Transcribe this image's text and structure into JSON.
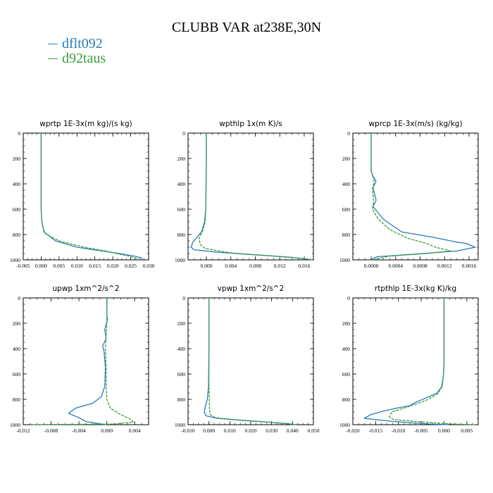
{
  "title": "CLUBB VAR at238E,30N",
  "legend": [
    {
      "name": "dflt092",
      "color": "#2a7ab9"
    },
    {
      "name": "d92taus",
      "color": "#3a9e3a"
    }
  ],
  "chart_data": [
    {
      "type": "line",
      "title": "wprtp  1E-3x(m kg)/(s kg)",
      "xlim": [
        -0.005,
        0.03
      ],
      "ylim": [
        1000,
        0
      ],
      "xticks": [
        -0.005,
        0.0,
        0.005,
        0.01,
        0.015,
        0.02,
        0.025,
        0.03
      ],
      "xtick_labels": [
        "-0.005",
        "0.000",
        "0.005",
        "0.010",
        "0.015",
        "0.020",
        "0.025",
        "0.030"
      ],
      "yticks": [
        0,
        200,
        400,
        600,
        800,
        1000
      ],
      "ytick_labels": [
        "0",
        "200",
        "400",
        "600",
        "800",
        "1000"
      ],
      "series": [
        {
          "name": "dflt092",
          "color": "#2a7ab9",
          "dash": false,
          "x": [
            0,
            0,
            0,
            0.0002,
            0.0008,
            0.004,
            0.01,
            0.017,
            0.022,
            0.026,
            0.028,
            0.0282
          ],
          "y": [
            0,
            200,
            600,
            700,
            780,
            850,
            900,
            930,
            950,
            970,
            985,
            1000
          ]
        },
        {
          "name": "d92taus",
          "color": "#3a9e3a",
          "dash": true,
          "x": [
            0,
            0,
            0,
            0.0002,
            0.001,
            0.005,
            0.012,
            0.018,
            0.021,
            0.0245,
            0.0262,
            0.0275
          ],
          "y": [
            0,
            200,
            600,
            700,
            790,
            850,
            900,
            930,
            950,
            970,
            985,
            1000
          ]
        }
      ]
    },
    {
      "type": "line",
      "title": "wpthlp  1x(m K)/s",
      "xlim": [
        -0.003,
        0.0175
      ],
      "ylim": [
        1000,
        0
      ],
      "xticks": [
        0.0,
        0.004,
        0.008,
        0.012,
        0.016
      ],
      "xtick_labels": [
        "0.000",
        "0.004",
        "0.008",
        "0.012",
        "0.016"
      ],
      "yticks": [
        0,
        200,
        400,
        600,
        800,
        1000
      ],
      "ytick_labels": [
        "0",
        "200",
        "400",
        "600",
        "800",
        "1000"
      ],
      "series": [
        {
          "name": "dflt092",
          "color": "#2a7ab9",
          "dash": false,
          "x": [
            0,
            0,
            -0.0001,
            -0.0003,
            -0.0008,
            -0.0015,
            -0.0022,
            -0.0025,
            -0.002,
            0.002,
            0.008,
            0.014,
            0.0165
          ],
          "y": [
            0,
            200,
            600,
            700,
            780,
            820,
            860,
            900,
            920,
            940,
            960,
            980,
            995
          ]
        },
        {
          "name": "d92taus",
          "color": "#3a9e3a",
          "dash": true,
          "x": [
            0,
            0,
            -0.0001,
            -0.0002,
            -0.0006,
            -0.0012,
            -0.001,
            -0.0002,
            0.004,
            0.011,
            0.016,
            0.0172
          ],
          "y": [
            0,
            200,
            600,
            700,
            770,
            830,
            880,
            910,
            945,
            970,
            990,
            1000
          ]
        }
      ]
    },
    {
      "type": "line",
      "title": "wprcp  1E-3x(m/s) (kg/kg)",
      "xlim": [
        -0.0003,
        0.00175
      ],
      "ylim": [
        1000,
        0
      ],
      "xticks": [
        0.0,
        0.0004,
        0.0008,
        0.0012,
        0.0016
      ],
      "xtick_labels": [
        "0.0000",
        "0.0004",
        "0.0008",
        "0.0012",
        "0.0016"
      ],
      "yticks": [
        0,
        200,
        400,
        600,
        800,
        1000
      ],
      "ytick_labels": [
        "0",
        "200",
        "400",
        "600",
        "800",
        "1000"
      ],
      "series": [
        {
          "name": "dflt092",
          "color": "#2a7ab9",
          "dash": false,
          "x": [
            0,
            0,
            2e-05,
            8e-05,
            3e-05,
            8e-05,
            3e-05,
            0.0002,
            0.0005,
            0.001,
            0.0014,
            0.00155,
            0.0017,
            0.0014,
            0.0007,
            0.0001,
            -2e-05
          ],
          "y": [
            0,
            300,
            330,
            380,
            430,
            530,
            580,
            680,
            780,
            820,
            860,
            870,
            900,
            930,
            955,
            975,
            1000
          ]
        },
        {
          "name": "d92taus",
          "color": "#3a9e3a",
          "dash": true,
          "x": [
            0,
            0,
            2e-05,
            5e-05,
            2e-05,
            4e-05,
            2e-05,
            0.00012,
            0.0003,
            0.0006,
            0.0009,
            0.00105,
            0.0013,
            0.0009,
            0.0003,
            2e-05
          ],
          "y": [
            0,
            300,
            330,
            380,
            440,
            540,
            600,
            680,
            760,
            830,
            870,
            900,
            930,
            950,
            970,
            1000
          ]
        }
      ]
    },
    {
      "type": "line",
      "title": "upwp   1xm^2/s^2",
      "xlim": [
        -0.012,
        0.006
      ],
      "ylim": [
        1000,
        0
      ],
      "xticks": [
        -0.012,
        -0.008,
        -0.004,
        0.0,
        0.004
      ],
      "xtick_labels": [
        "-0.012",
        "-0.008",
        "-0.004",
        "0.000",
        "0.004"
      ],
      "yticks": [
        0,
        200,
        400,
        600,
        800,
        1000
      ],
      "ytick_labels": [
        "0",
        "200",
        "400",
        "600",
        "800",
        "1000"
      ],
      "series": [
        {
          "name": "dflt092",
          "color": "#2a7ab9",
          "dash": false,
          "x": [
            0,
            0,
            0.0001,
            -0.0003,
            -0.0001,
            -0.0006,
            -0.0004,
            -0.0002,
            -0.0003,
            -0.0008,
            -0.002,
            -0.0045,
            -0.0055,
            -0.004,
            -0.003,
            -0.0008,
            0
          ],
          "y": [
            0,
            140,
            170,
            250,
            320,
            380,
            420,
            550,
            700,
            780,
            830,
            870,
            910,
            945,
            975,
            995,
            1000
          ]
        },
        {
          "name": "d92taus",
          "color": "#3a9e3a",
          "dash": true,
          "x": [
            0,
            0,
            -0.0001,
            -0.0002,
            -0.0001,
            -0.0001,
            0,
            0.0005,
            0.002,
            0.0035,
            0.0038,
            0.001,
            -0.011
          ],
          "y": [
            0,
            200,
            300,
            400,
            550,
            700,
            800,
            870,
            920,
            960,
            980,
            995,
            1000
          ]
        }
      ]
    },
    {
      "type": "line",
      "title": "vpwp   1xm^2/s^2",
      "xlim": [
        -0.01,
        0.05
      ],
      "ylim": [
        1000,
        0
      ],
      "xticks": [
        -0.01,
        0.0,
        0.01,
        0.02,
        0.03,
        0.04,
        0.05
      ],
      "xtick_labels": [
        "-0.010",
        "0.000",
        "0.010",
        "0.020",
        "0.030",
        "0.040",
        "0.050"
      ],
      "yticks": [
        0,
        200,
        400,
        600,
        800,
        1000
      ],
      "ytick_labels": [
        "0",
        "200",
        "400",
        "600",
        "800",
        "1000"
      ],
      "series": [
        {
          "name": "dflt092",
          "color": "#2a7ab9",
          "dash": false,
          "x": [
            0,
            0,
            -0.0002,
            -0.0008,
            -0.0018,
            -0.0022,
            -0.0015,
            0.004,
            0.015,
            0.028,
            0.038,
            0.042
          ],
          "y": [
            0,
            400,
            700,
            800,
            860,
            900,
            930,
            950,
            965,
            980,
            993,
            1000
          ]
        },
        {
          "name": "d92taus",
          "color": "#3a9e3a",
          "dash": true,
          "x": [
            0,
            0,
            0,
            0.0002,
            0.0005,
            0.003,
            0.012,
            0.025,
            0.036,
            0.041
          ],
          "y": [
            0,
            400,
            700,
            850,
            920,
            945,
            960,
            975,
            990,
            1000
          ]
        }
      ]
    },
    {
      "type": "line",
      "title": "rtpthlp   1E-3x(kg K)/kg",
      "xlim": [
        -0.02,
        0.0075
      ],
      "ylim": [
        1000,
        0
      ],
      "xticks": [
        -0.02,
        -0.015,
        -0.01,
        -0.005,
        0.0,
        0.005
      ],
      "xtick_labels": [
        "-0.020",
        "-0.015",
        "-0.010",
        "-0.005",
        "0.000",
        "0.005"
      ],
      "yticks": [
        0,
        200,
        400,
        600,
        800,
        1000
      ],
      "ytick_labels": [
        "0",
        "200",
        "400",
        "600",
        "800",
        "1000"
      ],
      "series": [
        {
          "name": "dflt092",
          "color": "#2a7ab9",
          "dash": false,
          "x": [
            0,
            0,
            -0.0001,
            -0.0005,
            -0.0015,
            -0.004,
            -0.006,
            -0.0075,
            -0.0105,
            -0.013,
            -0.016,
            -0.0175,
            -0.011,
            -0.003,
            0.001
          ],
          "y": [
            0,
            500,
            600,
            700,
            750,
            790,
            820,
            850,
            870,
            890,
            920,
            950,
            975,
            995,
            1000
          ]
        },
        {
          "name": "d92taus",
          "color": "#3a9e3a",
          "dash": true,
          "x": [
            0,
            0,
            -0.0001,
            -0.0004,
            -0.0015,
            -0.004,
            -0.008,
            -0.0115,
            -0.012,
            -0.011,
            -0.006,
            -0.001,
            0.002,
            0.007
          ],
          "y": [
            0,
            500,
            600,
            700,
            760,
            810,
            860,
            900,
            940,
            960,
            975,
            988,
            995,
            1000
          ]
        }
      ]
    }
  ]
}
